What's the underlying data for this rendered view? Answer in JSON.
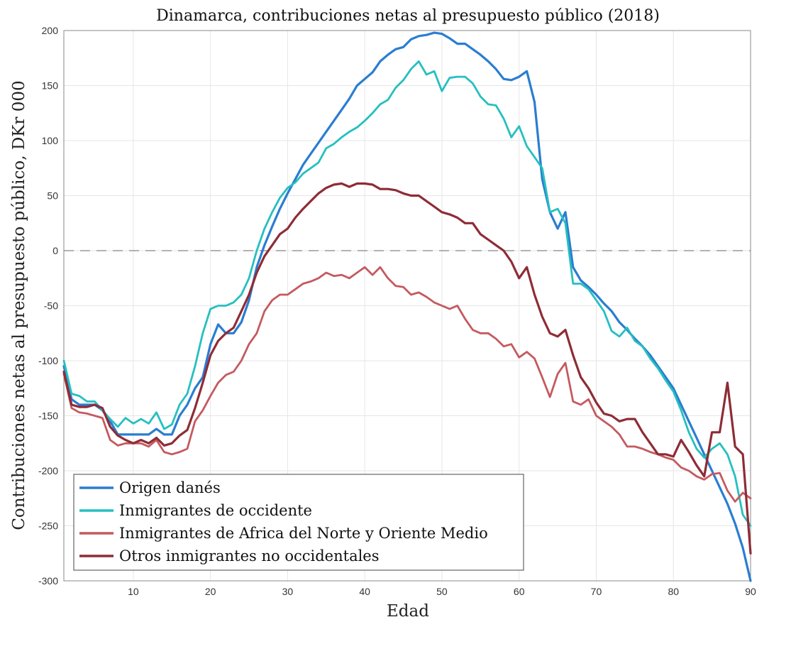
{
  "chart_data": {
    "type": "line",
    "title": "Dinamarca, contribuciones netas al presupuesto público (2018)",
    "xlabel": "Edad",
    "ylabel": "Contribuciones netas al presupuesto público, DKr 000",
    "xlim": [
      1,
      90
    ],
    "ylim": [
      -300,
      200
    ],
    "xticks": [
      10,
      20,
      30,
      40,
      50,
      60,
      70,
      80,
      90
    ],
    "yticks": [
      -300,
      -250,
      -200,
      -150,
      -100,
      -50,
      0,
      50,
      100,
      150,
      200
    ],
    "grid": true,
    "zero_line": 0,
    "legend_position": "bottom-left",
    "x": [
      1,
      2,
      3,
      4,
      5,
      6,
      7,
      8,
      9,
      10,
      11,
      12,
      13,
      14,
      15,
      16,
      17,
      18,
      19,
      20,
      21,
      22,
      23,
      24,
      25,
      26,
      27,
      28,
      29,
      30,
      31,
      32,
      33,
      34,
      35,
      36,
      37,
      38,
      39,
      40,
      41,
      42,
      43,
      44,
      45,
      46,
      47,
      48,
      49,
      50,
      51,
      52,
      53,
      54,
      55,
      56,
      57,
      58,
      59,
      60,
      61,
      62,
      63,
      64,
      65,
      66,
      67,
      68,
      69,
      70,
      71,
      72,
      73,
      74,
      75,
      76,
      77,
      78,
      79,
      80,
      81,
      82,
      83,
      84,
      85,
      86,
      87,
      88,
      89,
      90
    ],
    "series": [
      {
        "name": "Origen danés",
        "color": "#2a7dd1",
        "width": 3.2,
        "values": [
          -105,
          -135,
          -140,
          -140,
          -140,
          -145,
          -155,
          -167,
          -167,
          -167,
          -167,
          -167,
          -162,
          -167,
          -167,
          -150,
          -140,
          -125,
          -115,
          -85,
          -67,
          -75,
          -75,
          -65,
          -45,
          -15,
          5,
          22,
          38,
          52,
          65,
          78,
          88,
          98,
          108,
          118,
          128,
          138,
          150,
          156,
          162,
          172,
          178,
          183,
          185,
          192,
          195,
          196,
          198,
          197,
          193,
          188,
          188,
          183,
          178,
          172,
          165,
          156,
          155,
          158,
          163,
          135,
          65,
          35,
          20,
          35,
          -15,
          -27,
          -33,
          -40,
          -48,
          -55,
          -65,
          -72,
          -80,
          -87,
          -95,
          -105,
          -115,
          -125,
          -140,
          -155,
          -170,
          -185,
          -200,
          -215,
          -230,
          -248,
          -270,
          -300
        ]
      },
      {
        "name": "Inmigrantes de occidente",
        "color": "#26bfc0",
        "width": 2.8,
        "values": [
          -100,
          -130,
          -132,
          -137,
          -137,
          -145,
          -153,
          -160,
          -152,
          -157,
          -153,
          -157,
          -147,
          -162,
          -158,
          -140,
          -130,
          -105,
          -75,
          -53,
          -50,
          -50,
          -47,
          -40,
          -25,
          0,
          20,
          35,
          48,
          57,
          62,
          70,
          75,
          80,
          93,
          97,
          103,
          108,
          112,
          118,
          125,
          133,
          137,
          148,
          155,
          165,
          172,
          160,
          163,
          145,
          157,
          158,
          158,
          152,
          140,
          133,
          132,
          120,
          103,
          113,
          95,
          85,
          75,
          35,
          38,
          25,
          -30,
          -30,
          -35,
          -45,
          -55,
          -73,
          -78,
          -70,
          -82,
          -87,
          -98,
          -107,
          -118,
          -128,
          -145,
          -165,
          -180,
          -188,
          -180,
          -175,
          -185,
          -205,
          -240,
          -250
        ]
      },
      {
        "name": "Inmigrantes de Africa del Norte y Oriente Medio",
        "color": "#c45a5f",
        "width": 2.8,
        "values": [
          -112,
          -143,
          -147,
          -148,
          -150,
          -152,
          -172,
          -177,
          -175,
          -175,
          -175,
          -178,
          -172,
          -183,
          -185,
          -183,
          -180,
          -155,
          -145,
          -132,
          -120,
          -113,
          -110,
          -100,
          -85,
          -75,
          -55,
          -45,
          -40,
          -40,
          -35,
          -30,
          -28,
          -25,
          -20,
          -23,
          -22,
          -25,
          -20,
          -15,
          -22,
          -15,
          -25,
          -32,
          -33,
          -40,
          -38,
          -42,
          -47,
          -50,
          -53,
          -50,
          -62,
          -72,
          -75,
          -75,
          -80,
          -87,
          -85,
          -97,
          -92,
          -98,
          -115,
          -133,
          -112,
          -102,
          -137,
          -140,
          -135,
          -150,
          -155,
          -160,
          -167,
          -178,
          -178,
          -180,
          -183,
          -185,
          -188,
          -190,
          -197,
          -200,
          -205,
          -208,
          -203,
          -202,
          -218,
          -228,
          -220,
          -225
        ]
      },
      {
        "name": "Otros inmigrantes no occidentales",
        "color": "#8e2c36",
        "width": 3.2,
        "values": [
          -110,
          -140,
          -142,
          -142,
          -140,
          -143,
          -160,
          -168,
          -172,
          -175,
          -172,
          -175,
          -170,
          -177,
          -175,
          -168,
          -163,
          -143,
          -120,
          -95,
          -82,
          -75,
          -70,
          -55,
          -40,
          -20,
          -5,
          5,
          15,
          20,
          30,
          38,
          45,
          52,
          57,
          60,
          61,
          58,
          61,
          61,
          60,
          56,
          56,
          55,
          52,
          50,
          50,
          45,
          40,
          35,
          33,
          30,
          25,
          25,
          15,
          10,
          5,
          0,
          -10,
          -25,
          -15,
          -40,
          -60,
          -75,
          -78,
          -72,
          -95,
          -115,
          -125,
          -138,
          -148,
          -150,
          -155,
          -153,
          -153,
          -165,
          -175,
          -185,
          -185,
          -187,
          -172,
          -183,
          -195,
          -205,
          -165,
          -165,
          -120,
          -178,
          -185,
          -275
        ]
      }
    ]
  }
}
